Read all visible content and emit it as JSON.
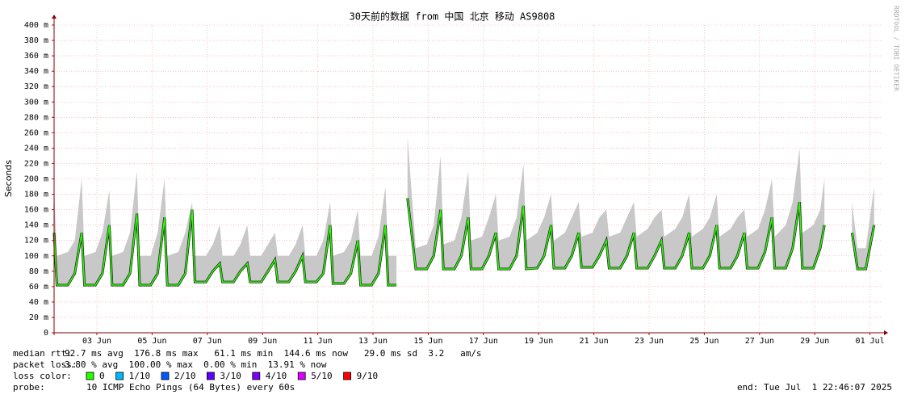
{
  "chart_data": {
    "type": "smokeping",
    "title": "30天前的数据 from 中国 北京 移动 AS9808",
    "ylabel": "Seconds",
    "watermark": "RRDTOOL / TOBI OETIKER",
    "xlim": [
      0,
      30
    ],
    "xticks": [
      {
        "value": 1.55,
        "label": "03 Jun"
      },
      {
        "value": 3.55,
        "label": "05 Jun"
      },
      {
        "value": 5.55,
        "label": "07 Jun"
      },
      {
        "value": 7.55,
        "label": "09 Jun"
      },
      {
        "value": 9.55,
        "label": "11 Jun"
      },
      {
        "value": 11.55,
        "label": "13 Jun"
      },
      {
        "value": 13.55,
        "label": "15 Jun"
      },
      {
        "value": 15.55,
        "label": "17 Jun"
      },
      {
        "value": 17.55,
        "label": "19 Jun"
      },
      {
        "value": 19.55,
        "label": "21 Jun"
      },
      {
        "value": 21.55,
        "label": "23 Jun"
      },
      {
        "value": 23.55,
        "label": "25 Jun"
      },
      {
        "value": 25.55,
        "label": "27 Jun"
      },
      {
        "value": 27.55,
        "label": "29 Jun"
      },
      {
        "value": 29.55,
        "label": "01 Jul"
      }
    ],
    "ylim": [
      0,
      400
    ],
    "yticks": [
      0,
      {
        "value": 20,
        "label": "20 m"
      },
      {
        "value": 40,
        "label": "40 m"
      },
      {
        "value": 60,
        "label": "60 m"
      },
      {
        "value": 80,
        "label": "80 m"
      },
      {
        "value": 100,
        "label": "100 m"
      },
      {
        "value": 120,
        "label": "120 m"
      },
      {
        "value": 140,
        "label": "140 m"
      },
      {
        "value": 160,
        "label": "160 m"
      },
      {
        "value": 180,
        "label": "180 m"
      },
      {
        "value": 200,
        "label": "200 m"
      },
      {
        "value": 220,
        "label": "220 m"
      },
      {
        "value": 240,
        "label": "240 m"
      },
      {
        "value": 260,
        "label": "260 m"
      },
      {
        "value": 280,
        "label": "280 m"
      },
      {
        "value": 300,
        "label": "300 m"
      },
      {
        "value": 320,
        "label": "320 m"
      },
      {
        "value": 340,
        "label": "340 m"
      },
      {
        "value": 360,
        "label": "360 m"
      },
      {
        "value": 380,
        "label": "380 m"
      },
      {
        "value": 400,
        "label": "400 m"
      }
    ],
    "grid": true,
    "x": [
      0,
      0.1,
      0.5,
      0.75,
      1,
      1.1,
      1.5,
      1.75,
      2,
      2.1,
      2.5,
      2.75,
      3,
      3.1,
      3.5,
      3.75,
      4,
      4.1,
      4.5,
      4.75,
      5,
      5.1,
      5.5,
      5.75,
      6,
      6.1,
      6.5,
      6.75,
      7,
      7.1,
      7.5,
      7.75,
      8,
      8.1,
      8.5,
      8.75,
      9,
      9.1,
      9.5,
      9.75,
      10,
      10.1,
      10.5,
      10.75,
      11,
      11.1,
      11.5,
      11.75,
      12,
      12.1,
      12.4,
      12.6,
      12.8,
      13.1,
      13.5,
      13.75,
      14,
      14.1,
      14.5,
      14.75,
      15,
      15.1,
      15.5,
      15.75,
      16,
      16.1,
      16.5,
      16.75,
      17,
      17.1,
      17.5,
      17.75,
      18,
      18.1,
      18.5,
      18.75,
      19,
      19.1,
      19.5,
      19.75,
      20,
      20.1,
      20.5,
      20.75,
      21,
      21.1,
      21.5,
      21.75,
      22,
      22.1,
      22.5,
      22.75,
      23,
      23.1,
      23.5,
      23.75,
      24,
      24.1,
      24.5,
      24.75,
      25,
      25.1,
      25.5,
      25.75,
      26,
      26.1,
      26.5,
      26.75,
      27,
      27.1,
      27.5,
      27.75,
      27.9,
      28.2,
      28.9,
      29.1,
      29.4,
      29.7
    ],
    "series": [
      {
        "color": "#26ff00",
        "values": [
          130,
          62,
          62,
          77,
          130,
          62,
          62,
          77,
          140,
          62,
          62,
          77,
          155,
          62,
          62,
          77,
          150,
          62,
          62,
          77,
          160,
          66,
          66,
          80,
          90,
          66,
          66,
          80,
          90,
          66,
          66,
          80,
          95,
          66,
          66,
          80,
          100,
          66,
          66,
          77,
          140,
          64,
          64,
          77,
          120,
          62,
          62,
          77,
          140,
          62,
          62,
          null,
          175,
          83,
          83,
          100,
          160,
          83,
          83,
          100,
          150,
          83,
          83,
          100,
          130,
          83,
          83,
          100,
          165,
          83,
          84,
          100,
          140,
          84,
          84,
          100,
          130,
          85,
          85,
          100,
          120,
          84,
          84,
          100,
          130,
          84,
          84,
          100,
          120,
          84,
          84,
          100,
          130,
          84,
          84,
          100,
          140,
          84,
          84,
          100,
          130,
          84,
          84,
          105,
          150,
          84,
          84,
          110,
          170,
          84,
          84,
          110,
          140,
          null,
          130,
          83,
          83,
          140
        ]
      },
      {
        "color": "#c8c8c8",
        "values": [
          190,
          100,
          105,
          120,
          200,
          100,
          105,
          130,
          185,
          100,
          105,
          130,
          210,
          100,
          100,
          130,
          200,
          100,
          105,
          130,
          170,
          100,
          100,
          115,
          140,
          100,
          100,
          115,
          140,
          100,
          100,
          115,
          130,
          100,
          100,
          115,
          140,
          100,
          100,
          120,
          170,
          100,
          105,
          120,
          160,
          100,
          100,
          125,
          190,
          100,
          100,
          null,
          255,
          110,
          115,
          140,
          230,
          115,
          120,
          150,
          210,
          120,
          125,
          150,
          180,
          120,
          125,
          150,
          220,
          120,
          130,
          150,
          180,
          120,
          130,
          150,
          170,
          125,
          130,
          150,
          160,
          125,
          130,
          150,
          170,
          125,
          135,
          150,
          160,
          125,
          135,
          150,
          180,
          125,
          135,
          150,
          180,
          125,
          135,
          150,
          160,
          125,
          135,
          160,
          200,
          125,
          140,
          170,
          240,
          130,
          140,
          160,
          200,
          null,
          170,
          110,
          110,
          190
        ]
      }
    ],
    "stats": [
      {
        "label": "median rtt:",
        "text": "92.7 ms avg  176.8 ms max   61.1 ms min  144.6 ms now   29.0 ms sd  3.2   am/s"
      },
      {
        "label": "packet loss:",
        "text": "3.80 % avg  100.00 % max  0.00 % min  13.91 % now"
      }
    ],
    "loss_colors": {
      "label": "loss color:",
      "items": [
        {
          "label": "0",
          "color": "#26ff00"
        },
        {
          "label": "1/10",
          "color": "#00b8ff"
        },
        {
          "label": "2/10",
          "color": "#0059ff"
        },
        {
          "label": "3/10",
          "color": "#5e00ff"
        },
        {
          "label": "4/10",
          "color": "#7e00ff"
        },
        {
          "label": "5/10",
          "color": "#dd00ff"
        },
        {
          "label": "9/10",
          "color": "#ff0000"
        }
      ]
    },
    "probe": {
      "label": "probe:",
      "text": "10 ICMP Echo Pings (64 Bytes) every 60s"
    },
    "end": "end: Tue Jul  1 22:46:07 2025"
  }
}
